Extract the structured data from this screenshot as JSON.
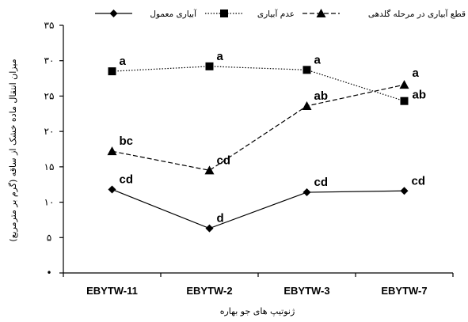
{
  "chart_data": {
    "type": "line",
    "xlabel": "ژنوتیپ های جو بهاره",
    "ylabel": "میزان انتقال ماده خشک از ساقه (گرم بر مترمربع)",
    "ylim": [
      0,
      35
    ],
    "yticks": [
      0,
      5,
      10,
      15,
      20,
      25,
      30,
      35
    ],
    "ytick_labels": [
      "•",
      "۵",
      "۱۰",
      "۱۵",
      "۲۰",
      "۲۵",
      "۳۰",
      "۳۵"
    ],
    "categories": [
      "EBYTW-11",
      "EBYTW-2",
      "EBYTW-3",
      "EBYTW-7"
    ],
    "grid": false,
    "legend_position": "top",
    "series": [
      {
        "name": "آبیاری معمول",
        "marker": "diamond",
        "line": "solid",
        "values": [
          11.8,
          6.3,
          11.4,
          11.6
        ],
        "labels": [
          "cd",
          "d",
          "cd",
          "cd"
        ]
      },
      {
        "name": "عدم آبیاری",
        "marker": "square",
        "line": "dotted",
        "values": [
          28.5,
          29.2,
          28.7,
          24.3
        ],
        "labels": [
          "a",
          "a",
          "a",
          "ab"
        ]
      },
      {
        "name": "قطع آبیاری در مرحله گلدهی",
        "marker": "triangle",
        "line": "dashed",
        "values": [
          17.2,
          14.5,
          23.6,
          26.6
        ],
        "labels": [
          "bc",
          "cd",
          "ab",
          "a"
        ]
      }
    ]
  }
}
